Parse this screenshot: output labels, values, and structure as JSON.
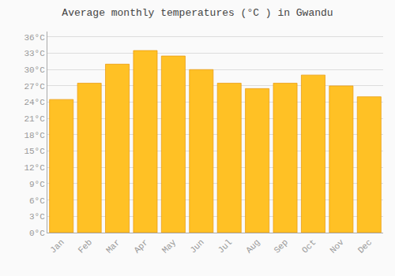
{
  "chart_data": {
    "type": "bar",
    "title": "Average monthly temperatures (°C ) in Gwandu",
    "categories": [
      "Jan",
      "Feb",
      "Mar",
      "Apr",
      "May",
      "Jun",
      "Jul",
      "Aug",
      "Sep",
      "Oct",
      "Nov",
      "Dec"
    ],
    "values": [
      24.5,
      27.5,
      31.0,
      33.5,
      32.5,
      30.0,
      27.5,
      26.5,
      27.5,
      29.0,
      27.0,
      25.0
    ],
    "color": "#FFC125",
    "ylim": [
      0,
      37
    ],
    "yticks": [
      {
        "value": 0,
        "label": "0°C"
      },
      {
        "value": 3,
        "label": "3°C"
      },
      {
        "value": 6,
        "label": "6°C"
      },
      {
        "value": 9,
        "label": "9°C"
      },
      {
        "value": 12,
        "label": "12°C"
      },
      {
        "value": 15,
        "label": "15°C"
      },
      {
        "value": 18,
        "label": "18°C"
      },
      {
        "value": 21,
        "label": "21°C"
      },
      {
        "value": 24,
        "label": "24°C"
      },
      {
        "value": 27,
        "label": "27°C"
      },
      {
        "value": 30,
        "label": "30°C"
      },
      {
        "value": 33,
        "label": "33°C"
      },
      {
        "value": 36,
        "label": "36°C"
      }
    ],
    "grid": true
  }
}
